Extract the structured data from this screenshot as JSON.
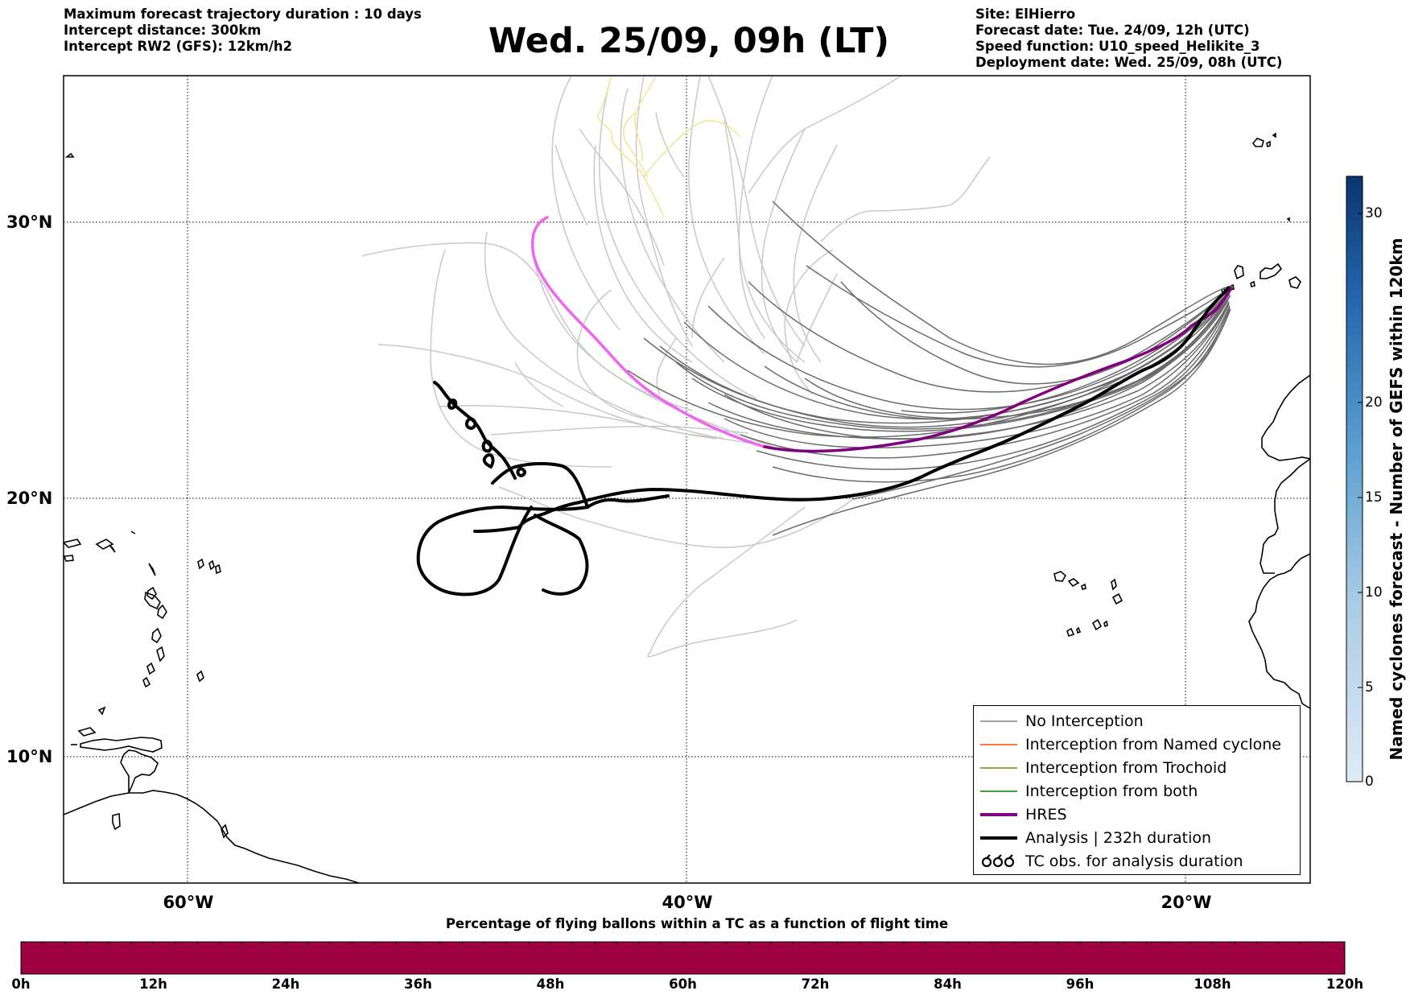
{
  "header": {
    "left_lines": [
      "Maximum forecast trajectory duration : 10 days",
      "Intercept distance: 300km",
      "Intercept RW2 (GFS):  12km/h2"
    ],
    "title": "Wed. 25/09, 09h (LT)",
    "right_lines": [
      "Site: ElHierro",
      "Forecast date: Tue. 24/09, 12h (UTC)",
      "Speed function: U10_speed_Helikite_3",
      "Deployment date: Wed. 25/09, 08h (UTC)"
    ]
  },
  "map": {
    "lat_labels": [
      "30°N",
      "20°N",
      "10°N"
    ],
    "lon_labels": [
      "60°W",
      "40°W",
      "20°W"
    ],
    "extent": {
      "lon_min": -65,
      "lon_max": -15,
      "lat_min": 5.5,
      "lat_max": 34.8
    }
  },
  "legend": {
    "items": [
      {
        "label": "No Interception",
        "color": "#808080"
      },
      {
        "label": "Interception from Named cyclone",
        "color": "#ff4500"
      },
      {
        "label": "Interception from Trochoid",
        "color": "#808000"
      },
      {
        "label": "Interception from both",
        "color": "#008000"
      },
      {
        "label": "HRES",
        "color": "#800080"
      },
      {
        "label": "Analysis | 232h duration",
        "color": "#000000"
      },
      {
        "label": "TC obs. for analysis duration",
        "color": "#000000"
      }
    ]
  },
  "bottom_colorbar": {
    "title": "Percentage of flying ballons within a TC as a function of flight time",
    "ticks": [
      "0h",
      "12h",
      "24h",
      "36h",
      "48h",
      "60h",
      "72h",
      "84h",
      "96h",
      "108h",
      "120h"
    ],
    "color": "#9e0142"
  },
  "side_colorbar": {
    "title": "Named cyclones forecast - Number of GEFS within 120km",
    "ticks": [
      "0",
      "5",
      "10",
      "15",
      "20",
      "30"
    ]
  },
  "colors": {
    "no_interception": "#6b6b6b",
    "light_member": "#c8c8c8",
    "hres": "#800080",
    "hres_light": "#ee66ee",
    "analysis": "#000000",
    "yellow_member": "#f0e68c"
  }
}
